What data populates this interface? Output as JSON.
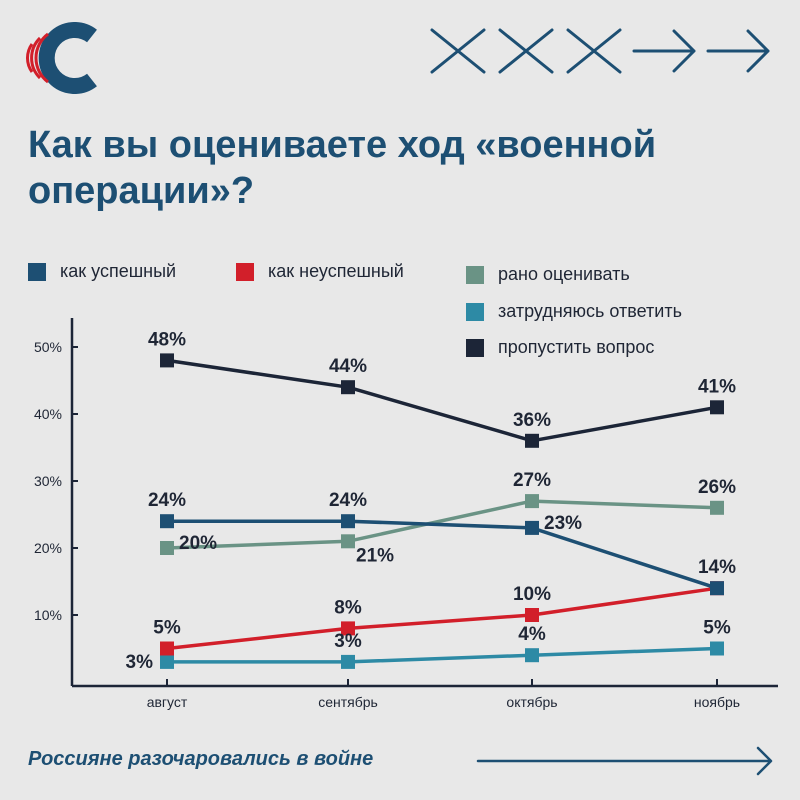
{
  "brand": {
    "logo": "logo-c-icon",
    "accent": "#1d4f73",
    "red": "#d21f2a"
  },
  "header": {
    "title_line1": "Как вы оцениваете ход «военной",
    "title_line2": "операции»?"
  },
  "footer": {
    "text": "Россияне разочаровались в войне"
  },
  "chart_data": {
    "type": "line",
    "categories": [
      "август",
      "сентябрь",
      "октябрь",
      "ноябрь"
    ],
    "yticks": [
      "10%",
      "20%",
      "30%",
      "40%",
      "50%"
    ],
    "ytick_values": [
      10,
      20,
      30,
      40,
      50
    ],
    "ylim": [
      0,
      50
    ],
    "grid": false,
    "legend_position": "top",
    "series": [
      {
        "name": "пропустить вопрос",
        "color": "#1c2537",
        "values": [
          48,
          44,
          36,
          41
        ],
        "labels": [
          "48%",
          "44%",
          "36%",
          "41%"
        ],
        "label_pos": [
          "above",
          "above",
          "above",
          "above"
        ]
      },
      {
        "name": "как успешный",
        "color": "#1d4f73",
        "values": [
          24,
          24,
          23,
          14
        ],
        "labels": [
          "24%",
          "24%",
          "23%",
          "14%"
        ],
        "label_pos": [
          "above",
          "above",
          "right",
          "above"
        ]
      },
      {
        "name": "рано оценивать",
        "color": "#6a9385",
        "values": [
          20,
          21,
          27,
          26
        ],
        "labels": [
          "20%",
          "21%",
          "27%",
          "26%"
        ],
        "label_pos": [
          "right",
          "below-right",
          "above",
          "above"
        ]
      },
      {
        "name": "как неуспешный",
        "color": "#d21f2a",
        "values": [
          5,
          8,
          10,
          14
        ],
        "labels": [
          "5%",
          "8%",
          "10%",
          ""
        ],
        "label_pos": [
          "above",
          "above",
          "above",
          "none"
        ]
      },
      {
        "name": "затрудняюсь ответить",
        "color": "#2d8aa5",
        "values": [
          3,
          3,
          4,
          5
        ],
        "labels": [
          "3%",
          "3%",
          "4%",
          "5%"
        ],
        "label_pos": [
          "left",
          "above",
          "above",
          "above"
        ]
      }
    ]
  },
  "legend": [
    {
      "name": "как успешный",
      "color": "#1d4f73"
    },
    {
      "name": "как неуспешный",
      "color": "#d21f2a"
    },
    {
      "name": "рано оценивать",
      "color": "#6a9385"
    },
    {
      "name": "затрудняюсь ответить",
      "color": "#2d8aa5"
    },
    {
      "name": "пропустить вопрос",
      "color": "#1c2537"
    }
  ]
}
